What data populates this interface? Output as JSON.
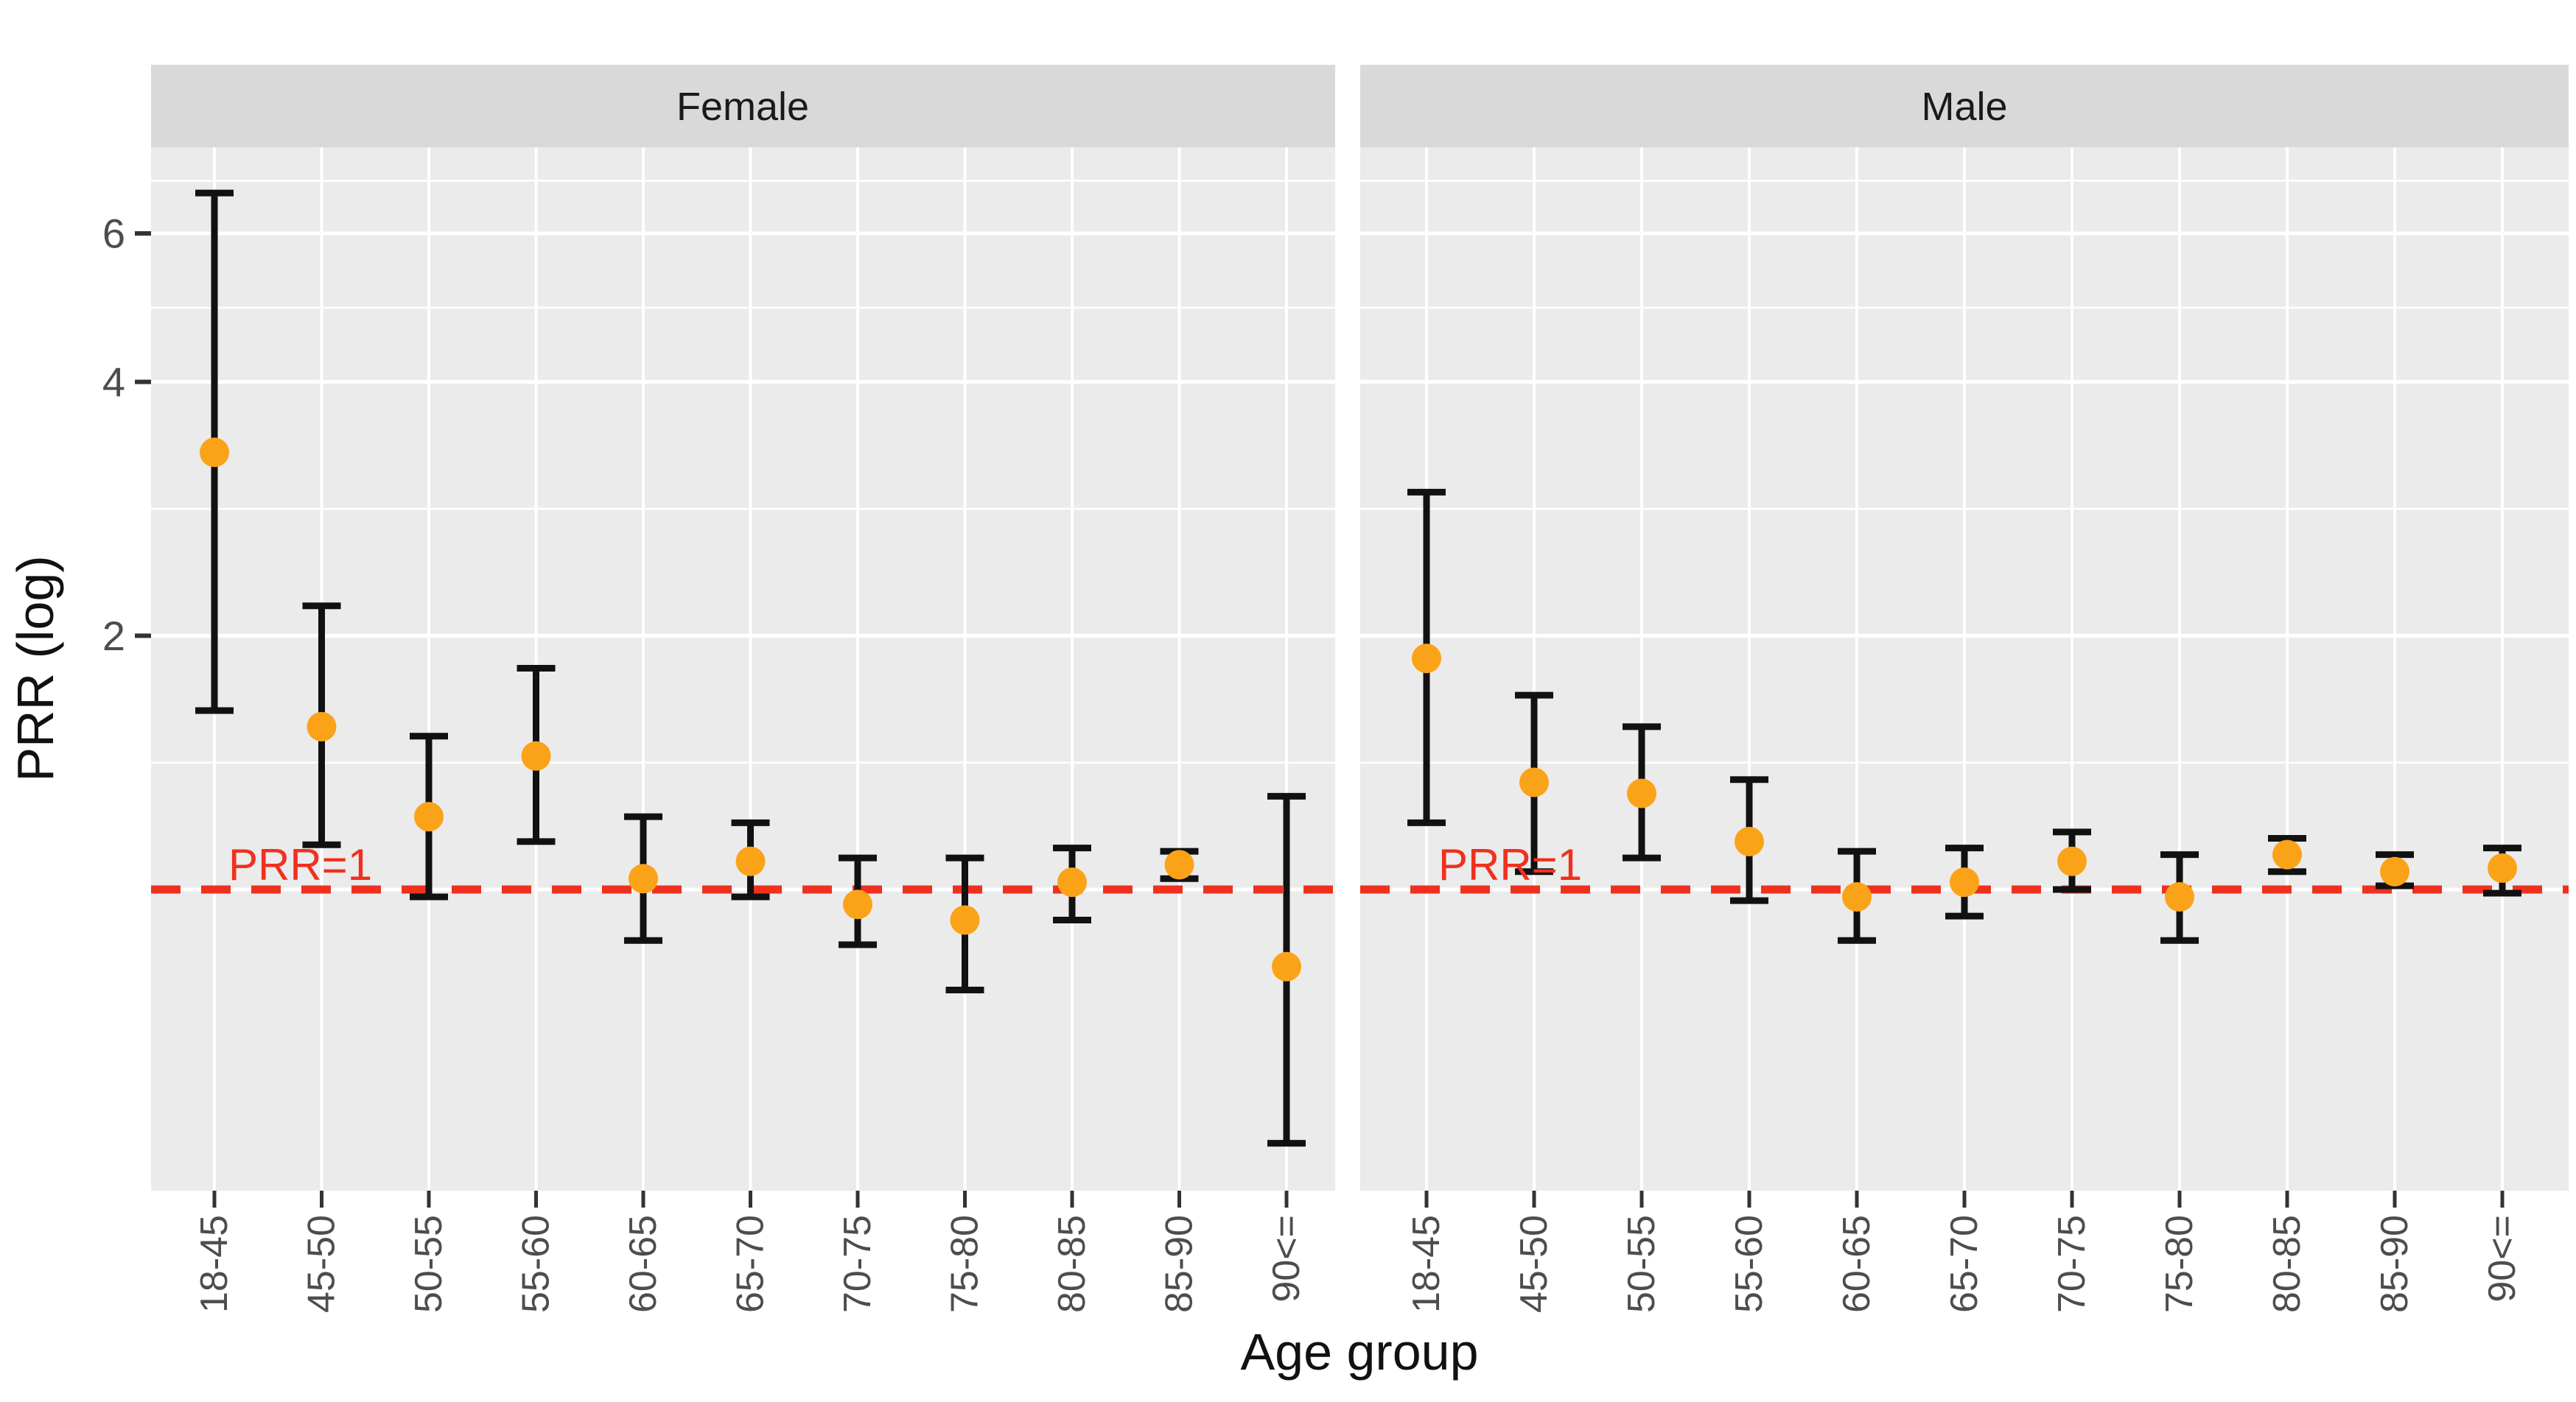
{
  "chart_data": {
    "type": "scatter",
    "subtype": "point-estimate-with-error-bars",
    "title": "",
    "xlabel": "Age group",
    "ylabel": "PRR (log)",
    "yscale": "log10",
    "ylim": [
      0.43,
      7.6
    ],
    "grid": "on",
    "legend": "none",
    "y_tick_labels": [
      "2",
      "4",
      "6"
    ],
    "y_tick_values": [
      2,
      4,
      6
    ],
    "y_minor_grid_values": [
      1.414,
      2.828,
      4.899,
      6.928
    ],
    "reference_line": {
      "value": 1,
      "label": "PRR=1",
      "style": "dashed"
    },
    "categories": [
      "18-45",
      "45-50",
      "50-55",
      "55-60",
      "60-65",
      "65-70",
      "70-75",
      "75-80",
      "80-85",
      "85-90",
      "90<="
    ],
    "facets": [
      {
        "label": "Female",
        "prr": [
          3.3,
          1.56,
          1.22,
          1.44,
          1.03,
          1.08,
          0.96,
          0.92,
          1.02,
          1.07,
          0.81
        ],
        "ci_lower": [
          1.63,
          1.13,
          0.98,
          1.14,
          0.87,
          0.98,
          0.86,
          0.76,
          0.92,
          1.03,
          0.5
        ],
        "ci_upper": [
          6.7,
          2.17,
          1.52,
          1.83,
          1.22,
          1.2,
          1.09,
          1.09,
          1.12,
          1.11,
          1.29
        ]
      },
      {
        "label": "Male",
        "prr": [
          1.88,
          1.34,
          1.3,
          1.14,
          0.98,
          1.02,
          1.08,
          0.98,
          1.1,
          1.05,
          1.06
        ],
        "ci_lower": [
          1.2,
          1.05,
          1.09,
          0.97,
          0.87,
          0.93,
          1.0,
          0.87,
          1.05,
          1.01,
          0.99
        ],
        "ci_upper": [
          2.96,
          1.7,
          1.56,
          1.35,
          1.11,
          1.12,
          1.17,
          1.1,
          1.15,
          1.1,
          1.12
        ]
      }
    ],
    "colors": {
      "point": "#FBA318",
      "error_bar": "#111111",
      "reference_line": "#F0301E",
      "panel_background": "#EBEBEB",
      "strip_background": "#D9D9D9",
      "gridline": "#FFFFFF",
      "axis_text": "#4D4D4D",
      "title_text": "#111111"
    }
  }
}
